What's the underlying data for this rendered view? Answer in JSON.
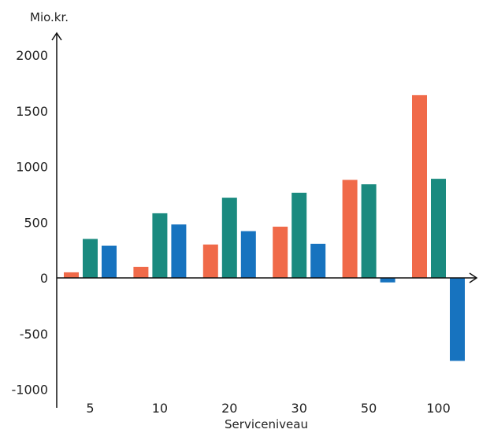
{
  "chart_data": {
    "type": "bar",
    "ylabel": "Mio.kr.",
    "xlabel": "Serviceniveau",
    "ylim": [
      -1000,
      2000
    ],
    "yticks": [
      2000,
      1500,
      1000,
      500,
      0,
      -500,
      -1000
    ],
    "categories": [
      "5",
      "10",
      "20",
      "30",
      "50",
      "100"
    ],
    "grid": false,
    "legend": "none",
    "series": [
      {
        "color": "#f06a49",
        "values": [
          50,
          100,
          300,
          460,
          880,
          1640
        ]
      },
      {
        "color": "#1a8a7f",
        "values": [
          350,
          580,
          720,
          765,
          840,
          890
        ]
      },
      {
        "color": "#1773bf",
        "values": [
          290,
          480,
          420,
          305,
          -40,
          -745
        ]
      }
    ]
  }
}
